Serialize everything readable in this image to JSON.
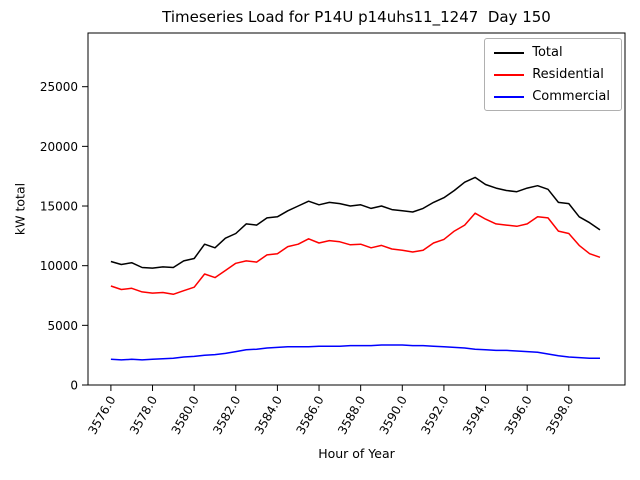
{
  "figure": {
    "title": "Timeseries Load for P14U p14uhs11_1247  Day 150",
    "xlabel": "Hour of Year",
    "ylabel": "kW total"
  },
  "legend": {
    "position": "upper right",
    "entries": [
      {
        "label": "Total",
        "color": "#000000"
      },
      {
        "label": "Residential",
        "color": "#ff0000"
      },
      {
        "label": "Commercial",
        "color": "#0000ff"
      }
    ]
  },
  "chart_data": {
    "type": "line",
    "title": "Timeseries Load for P14U p14uhs11_1247  Day 150",
    "xlabel": "Hour of Year",
    "ylabel": "kW total",
    "grid": false,
    "legend_position": "upper right",
    "xlim": [
      3574.9,
      3600.7
    ],
    "ylim": [
      0,
      29500
    ],
    "x_ticks": [
      3576,
      3578,
      3580,
      3582,
      3584,
      3586,
      3588,
      3590,
      3592,
      3594,
      3596,
      3598
    ],
    "x_tick_labels": [
      "3576.0",
      "3578.0",
      "3580.0",
      "3582.0",
      "3584.0",
      "3586.0",
      "3588.0",
      "3590.0",
      "3592.0",
      "3594.0",
      "3596.0",
      "3598.0"
    ],
    "y_ticks": [
      0,
      5000,
      10000,
      15000,
      20000,
      25000
    ],
    "y_tick_labels": [
      "0",
      "5000",
      "10000",
      "15000",
      "20000",
      "25000"
    ],
    "x": [
      3576.0,
      3576.5,
      3577.0,
      3577.5,
      3578.0,
      3578.5,
      3579.0,
      3579.5,
      3580.0,
      3580.5,
      3581.0,
      3581.5,
      3582.0,
      3582.5,
      3583.0,
      3583.5,
      3584.0,
      3584.5,
      3585.0,
      3585.5,
      3586.0,
      3586.5,
      3587.0,
      3587.5,
      3588.0,
      3588.5,
      3589.0,
      3589.5,
      3590.0,
      3590.5,
      3591.0,
      3591.5,
      3592.0,
      3592.5,
      3593.0,
      3593.5,
      3594.0,
      3594.5,
      3595.0,
      3595.5,
      3596.0,
      3596.5,
      3597.0,
      3597.5,
      3598.0,
      3598.5,
      3599.0,
      3599.5
    ],
    "series": [
      {
        "name": "Total",
        "color": "#000000",
        "values": [
          10350,
          10100,
          10250,
          9850,
          9800,
          9900,
          9850,
          10400,
          10600,
          11800,
          11500,
          12300,
          12700,
          13500,
          13400,
          14000,
          14100,
          14600,
          15000,
          15400,
          15100,
          15300,
          15200,
          15000,
          15100,
          14800,
          15000,
          14700,
          14600,
          14500,
          14800,
          15300,
          15700,
          16300,
          17000,
          17400,
          16800,
          16500,
          16300,
          16200,
          16500,
          16700,
          16400,
          15300,
          15200,
          14100,
          13600,
          13000
        ]
      },
      {
        "name": "Residential",
        "color": "#ff0000",
        "values": [
          8300,
          8000,
          8100,
          7800,
          7700,
          7750,
          7600,
          7900,
          8200,
          9300,
          9000,
          9600,
          10200,
          10400,
          10300,
          10900,
          11000,
          11600,
          11800,
          12250,
          11900,
          12100,
          12000,
          11750,
          11800,
          11500,
          11700,
          11400,
          11300,
          11150,
          11300,
          11900,
          12200,
          12900,
          13400,
          14400,
          13900,
          13500,
          13400,
          13300,
          13500,
          14100,
          14000,
          12900,
          12700,
          11700,
          11000,
          10700
        ]
      },
      {
        "name": "Commercial",
        "color": "#0000ff",
        "values": [
          2150,
          2100,
          2150,
          2100,
          2150,
          2200,
          2250,
          2350,
          2400,
          2500,
          2550,
          2650,
          2800,
          2950,
          3000,
          3100,
          3150,
          3200,
          3200,
          3200,
          3250,
          3250,
          3250,
          3300,
          3300,
          3300,
          3350,
          3350,
          3350,
          3300,
          3300,
          3250,
          3200,
          3150,
          3100,
          3000,
          2950,
          2900,
          2900,
          2850,
          2800,
          2750,
          2600,
          2450,
          2350,
          2300,
          2250,
          2250
        ]
      }
    ]
  }
}
